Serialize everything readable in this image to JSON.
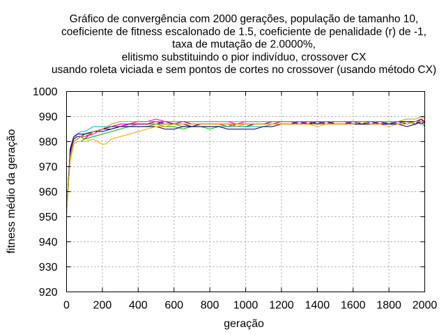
{
  "chart_data": {
    "type": "line",
    "title_lines": [
      "Gráfico de convergência com 2000 gerações, população de tamanho 10,",
      "coeficiente de fitness escalonado de 1.5, coeficiente de penalidade (r) de -1,",
      "taxa de mutação de 2.0000%,",
      "elitismo substituindo o pior indivíduo, crossover CX",
      "usando roleta viciada e sem pontos de cortes no crossover (usando método CX)"
    ],
    "xlabel": "geração",
    "ylabel": "fitness médio da geração",
    "xlim": [
      0,
      2000
    ],
    "ylim": [
      920,
      1000
    ],
    "x_ticks": [
      0,
      200,
      400,
      600,
      800,
      1000,
      1200,
      1400,
      1600,
      1800,
      2000
    ],
    "y_ticks": [
      920,
      930,
      940,
      950,
      960,
      970,
      980,
      990,
      1000
    ],
    "grid": true,
    "legend": "none",
    "series": [
      {
        "color": "#ff0000",
        "x": [
          0,
          20,
          40,
          60,
          80,
          100,
          150,
          200,
          250,
          300,
          350,
          400,
          450,
          500,
          550,
          600,
          650,
          700,
          750,
          800,
          850,
          900,
          950,
          1000,
          1050,
          1100,
          1150,
          1200,
          1250,
          1300,
          1350,
          1400,
          1450,
          1500,
          1550,
          1600,
          1650,
          1700,
          1750,
          1800,
          1850,
          1900,
          1950,
          1980,
          2000
        ],
        "y": [
          952,
          975,
          980,
          981,
          982,
          981,
          984,
          985,
          986,
          987,
          987,
          988,
          988,
          988,
          987,
          987,
          986,
          986,
          987,
          987,
          987,
          986,
          987,
          987,
          987,
          987,
          987,
          988,
          988,
          987,
          988,
          987,
          987,
          988,
          988,
          987,
          988,
          987,
          988,
          987,
          988,
          988,
          987,
          989,
          987
        ]
      },
      {
        "color": "#00c000",
        "x": [
          0,
          20,
          40,
          60,
          80,
          100,
          150,
          200,
          250,
          300,
          350,
          400,
          450,
          500,
          550,
          600,
          650,
          700,
          750,
          800,
          850,
          900,
          950,
          1000,
          1050,
          1100,
          1150,
          1200,
          1250,
          1300,
          1350,
          1400,
          1450,
          1500,
          1550,
          1600,
          1650,
          1700,
          1750,
          1800,
          1850,
          1900,
          1950,
          1980,
          2000
        ],
        "y": [
          953,
          973,
          979,
          980,
          980,
          981,
          982,
          983,
          984,
          985,
          986,
          986,
          986,
          987,
          986,
          986,
          985,
          986,
          986,
          985,
          986,
          986,
          986,
          986,
          987,
          987,
          987,
          987,
          987,
          987,
          987,
          987,
          987,
          987,
          987,
          987,
          987,
          987,
          987,
          987,
          988,
          988,
          987,
          988,
          986
        ]
      },
      {
        "color": "#0000ff",
        "x": [
          0,
          20,
          40,
          60,
          80,
          100,
          150,
          200,
          250,
          300,
          350,
          400,
          450,
          500,
          550,
          600,
          650,
          700,
          750,
          800,
          850,
          900,
          950,
          1000,
          1050,
          1100,
          1150,
          1200,
          1250,
          1300,
          1350,
          1400,
          1450,
          1500,
          1550,
          1600,
          1650,
          1700,
          1750,
          1800,
          1850,
          1900,
          1950,
          1980,
          2000
        ],
        "y": [
          952,
          976,
          981,
          982,
          982,
          983,
          984,
          984,
          985,
          986,
          986,
          987,
          987,
          987,
          988,
          987,
          987,
          986,
          987,
          987,
          987,
          987,
          986,
          986,
          987,
          987,
          987,
          987,
          987,
          988,
          987,
          988,
          987,
          987,
          987,
          988,
          987,
          988,
          987,
          987,
          988,
          987,
          988,
          987,
          988
        ]
      },
      {
        "color": "#ff00ff",
        "x": [
          0,
          20,
          40,
          60,
          80,
          100,
          150,
          200,
          250,
          300,
          350,
          400,
          450,
          500,
          550,
          600,
          650,
          700,
          750,
          800,
          850,
          900,
          950,
          1000,
          1050,
          1100,
          1150,
          1200,
          1250,
          1300,
          1350,
          1400,
          1450,
          1500,
          1550,
          1600,
          1650,
          1700,
          1750,
          1800,
          1850,
          1900,
          1950,
          1980,
          2000
        ],
        "y": [
          953,
          974,
          980,
          981,
          982,
          982,
          983,
          985,
          986,
          987,
          987,
          988,
          988,
          989,
          988,
          988,
          988,
          988,
          988,
          988,
          988,
          988,
          987,
          988,
          988,
          988,
          988,
          988,
          988,
          988,
          988,
          988,
          988,
          988,
          988,
          988,
          988,
          988,
          988,
          988,
          988,
          988,
          988,
          989,
          988
        ]
      },
      {
        "color": "#00c8c8",
        "x": [
          0,
          20,
          40,
          60,
          80,
          100,
          150,
          200,
          250,
          300,
          350,
          400,
          450,
          500,
          550,
          600,
          650,
          700,
          750,
          800,
          850,
          900,
          950,
          1000,
          1050,
          1100,
          1150,
          1200,
          1250,
          1300,
          1350,
          1400,
          1450,
          1500,
          1550,
          1600,
          1650,
          1700,
          1750,
          1800,
          1850,
          1900,
          1950,
          1980,
          2000
        ],
        "y": [
          952,
          975,
          981,
          983,
          984,
          984,
          986,
          986,
          986,
          986,
          987,
          987,
          987,
          987,
          987,
          987,
          986,
          986,
          986,
          986,
          986,
          986,
          986,
          986,
          986,
          986,
          987,
          987,
          987,
          987,
          987,
          987,
          987,
          987,
          987,
          987,
          988,
          987,
          987,
          988,
          987,
          988,
          988,
          989,
          988
        ]
      },
      {
        "color": "#c8a000",
        "x": [
          0,
          20,
          40,
          60,
          80,
          100,
          150,
          200,
          250,
          300,
          350,
          400,
          450,
          500,
          550,
          600,
          650,
          700,
          750,
          800,
          850,
          900,
          950,
          1000,
          1050,
          1100,
          1150,
          1200,
          1250,
          1300,
          1350,
          1400,
          1450,
          1500,
          1550,
          1600,
          1650,
          1700,
          1750,
          1800,
          1850,
          1900,
          1950,
          1980,
          2000
        ],
        "y": [
          952,
          974,
          980,
          981,
          982,
          982,
          984,
          985,
          985,
          986,
          986,
          987,
          987,
          987,
          987,
          987,
          987,
          987,
          987,
          987,
          987,
          987,
          986,
          987,
          987,
          987,
          987,
          987,
          987,
          987,
          987,
          987,
          987,
          987,
          987,
          987,
          987,
          987,
          987,
          987,
          987,
          988,
          988,
          988,
          987
        ]
      },
      {
        "color": "#000080",
        "x": [
          0,
          20,
          40,
          60,
          80,
          100,
          150,
          200,
          250,
          300,
          350,
          400,
          450,
          500,
          550,
          600,
          650,
          700,
          750,
          800,
          850,
          900,
          950,
          1000,
          1050,
          1100,
          1150,
          1200,
          1250,
          1300,
          1350,
          1400,
          1450,
          1500,
          1550,
          1600,
          1650,
          1700,
          1750,
          1800,
          1850,
          1900,
          1950,
          1980,
          2000
        ],
        "y": [
          951,
          977,
          982,
          983,
          983,
          983,
          984,
          985,
          985,
          986,
          986,
          986,
          986,
          986,
          985,
          985,
          986,
          986,
          986,
          986,
          986,
          985,
          985,
          985,
          985,
          986,
          986,
          987,
          987,
          987,
          987,
          988,
          988,
          987,
          987,
          987,
          987,
          987,
          987,
          987,
          987,
          986,
          987,
          988,
          987
        ]
      },
      {
        "color": "#800080",
        "x": [
          0,
          20,
          40,
          60,
          80,
          100,
          150,
          200,
          250,
          300,
          350,
          400,
          450,
          500,
          550,
          600,
          650,
          700,
          750,
          800,
          850,
          900,
          950,
          1000,
          1050,
          1100,
          1150,
          1200,
          1250,
          1300,
          1350,
          1400,
          1450,
          1500,
          1550,
          1600,
          1650,
          1700,
          1750,
          1800,
          1850,
          1900,
          1950,
          1980,
          2000
        ],
        "y": [
          952,
          975,
          981,
          982,
          982,
          982,
          984,
          985,
          986,
          986,
          987,
          987,
          987,
          988,
          988,
          987,
          988,
          987,
          987,
          987,
          987,
          987,
          987,
          987,
          987,
          987,
          988,
          988,
          988,
          988,
          988,
          987,
          988,
          988,
          988,
          988,
          988,
          988,
          988,
          987,
          988,
          988,
          988,
          989,
          988
        ]
      },
      {
        "color": "#ffa500",
        "x": [
          0,
          20,
          40,
          60,
          80,
          100,
          150,
          200,
          220,
          250,
          300,
          350,
          400,
          450,
          500,
          550,
          600,
          650,
          700,
          750,
          800,
          850,
          900,
          950,
          1000,
          1050,
          1100,
          1150,
          1200,
          1250,
          1300,
          1350,
          1400,
          1450,
          1500,
          1550,
          1600,
          1650,
          1700,
          1750,
          1800,
          1850,
          1900,
          1950,
          1980,
          2000
        ],
        "y": [
          952,
          972,
          979,
          980,
          980,
          980,
          981,
          979,
          979,
          981,
          982,
          983,
          984,
          985,
          986,
          986,
          987,
          987,
          987,
          987,
          987,
          987,
          987,
          987,
          987,
          987,
          987,
          987,
          987,
          987,
          987,
          987,
          986,
          987,
          987,
          987,
          987,
          988,
          987,
          987,
          986,
          987,
          987,
          988,
          988,
          987
        ]
      },
      {
        "color": "#b0b000",
        "x": [
          0,
          20,
          40,
          60,
          80,
          100,
          150,
          200,
          250,
          300,
          350,
          400,
          450,
          500,
          550,
          600,
          650,
          700,
          750,
          800,
          850,
          900,
          950,
          1000,
          1050,
          1100,
          1150,
          1200,
          1250,
          1300,
          1350,
          1400,
          1450,
          1500,
          1550,
          1600,
          1650,
          1700,
          1750,
          1800,
          1850,
          1900,
          1950,
          1980,
          2000
        ],
        "y": [
          952,
          974,
          980,
          981,
          982,
          982,
          984,
          985,
          987,
          988,
          988,
          988,
          988,
          988,
          988,
          988,
          988,
          988,
          988,
          988,
          988,
          988,
          988,
          988,
          988,
          988,
          988,
          988,
          988,
          988,
          988,
          988,
          988,
          988,
          988,
          988,
          988,
          988,
          988,
          988,
          988,
          989,
          989,
          990,
          989
        ]
      }
    ]
  }
}
